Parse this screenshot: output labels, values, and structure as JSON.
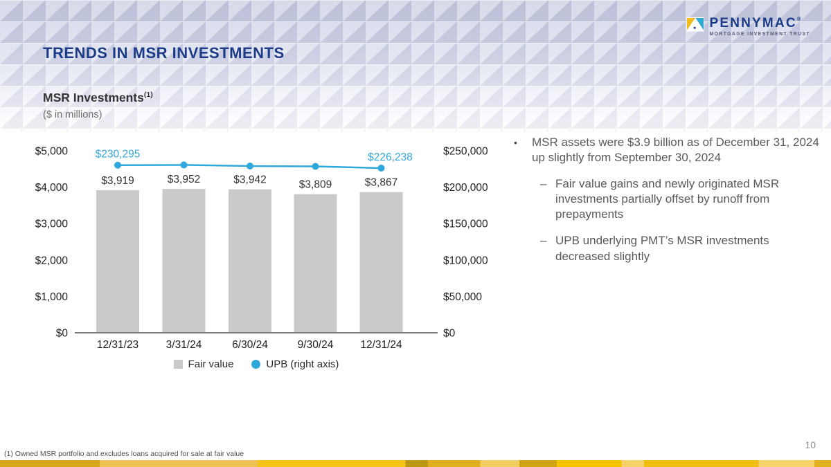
{
  "brand": {
    "name": "PENNYMAC",
    "registered": "®",
    "tagline": "MORTGAGE INVESTMENT TRUST"
  },
  "slide": {
    "title": "TRENDS IN MSR INVESTMENTS",
    "page_number": "10",
    "footnote": "(1) Owned MSR portfolio and excludes loans acquired for sale at fair value"
  },
  "chart_header": {
    "title": "MSR Investments",
    "title_superscript": "(1)",
    "subtitle": "($ in millions)"
  },
  "chart_data": {
    "type": "bar+line",
    "categories": [
      "12/31/23",
      "3/31/24",
      "6/30/24",
      "9/30/24",
      "12/31/24"
    ],
    "series": [
      {
        "name": "Fair value",
        "type": "bar",
        "axis": "left",
        "values": [
          3919,
          3952,
          3942,
          3809,
          3867
        ],
        "labels": [
          "$3,919",
          "$3,952",
          "$3,942",
          "$3,809",
          "$3,867"
        ],
        "color": "#cacaca"
      },
      {
        "name": "UPB (right axis)",
        "type": "line",
        "axis": "right",
        "values": [
          230295,
          230600,
          229100,
          228600,
          226238
        ],
        "labeled_points": {
          "first": "$230,295",
          "last": "$226,238"
        },
        "color": "#2fa8db",
        "label_color": "#35a7da"
      }
    ],
    "left_axis": {
      "ticks": [
        "$5,000",
        "$4,000",
        "$3,000",
        "$2,000",
        "$1,000",
        "$0"
      ],
      "min": 0,
      "max": 5000
    },
    "right_axis": {
      "ticks": [
        "$250,000",
        "$200,000",
        "$150,000",
        "$100,000",
        "$50,000",
        "$0"
      ],
      "min": 0,
      "max": 250000
    },
    "legend": [
      {
        "label": "Fair value",
        "swatch": "square",
        "color": "#cacaca"
      },
      {
        "label": "UPB (right axis)",
        "swatch": "circle",
        "color": "#2fa8db"
      }
    ],
    "grid": false,
    "legend_position": "bottom-center"
  },
  "commentary": {
    "marker": "•",
    "sub_marker": "–",
    "bullets": [
      {
        "text": "MSR assets were $3.9 billion as of December 31, 2024  up slightly from September 30, 2024",
        "sub": [
          "Fair value gains and newly originated MSR investments partially offset by runoff from prepayments",
          "UPB underlying PMT’s MSR investments decreased slightly"
        ]
      }
    ]
  },
  "colors": {
    "navy": "#1b3a87",
    "accent_blue": "#2fa8db",
    "bar_gray": "#cacaca",
    "gold": "#f5c417",
    "body_text": "#595959"
  }
}
